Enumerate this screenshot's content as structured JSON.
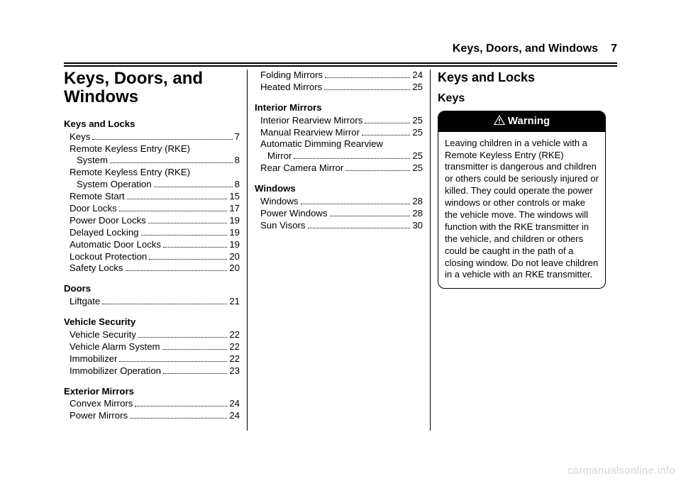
{
  "header": {
    "title": "Keys, Doors, and Windows",
    "page": "7"
  },
  "chapter_title": "Keys, Doors, and Windows",
  "col3": {
    "section": "Keys and Locks",
    "sub": "Keys",
    "warning_label": "Warning",
    "warning_body": "Leaving children in a vehicle with a Remote Keyless Entry (RKE) transmitter is dangerous and children or others could be seriously injured or killed. They could operate the power windows or other controls or make the vehicle move. The windows will function with the RKE transmitter in the vehicle, and children or others could be caught in the path of a closing window. Do not leave children in a vehicle with an RKE transmitter."
  },
  "toc_col1": [
    {
      "group": "Keys and Locks",
      "items": [
        {
          "label": [
            "Keys"
          ],
          "page": "7"
        },
        {
          "label": [
            "Remote Keyless Entry (RKE)",
            "System"
          ],
          "page": "8"
        },
        {
          "label": [
            "Remote Keyless Entry (RKE)",
            "System Operation"
          ],
          "page": "8"
        },
        {
          "label": [
            "Remote Start"
          ],
          "page": "15"
        },
        {
          "label": [
            "Door Locks"
          ],
          "page": "17"
        },
        {
          "label": [
            "Power Door Locks"
          ],
          "page": "19"
        },
        {
          "label": [
            "Delayed Locking"
          ],
          "page": "19"
        },
        {
          "label": [
            "Automatic Door Locks"
          ],
          "page": "19"
        },
        {
          "label": [
            "Lockout Protection"
          ],
          "page": "20"
        },
        {
          "label": [
            "Safety Locks"
          ],
          "page": "20"
        }
      ]
    },
    {
      "group": "Doors",
      "items": [
        {
          "label": [
            "Liftgate"
          ],
          "page": "21"
        }
      ]
    },
    {
      "group": "Vehicle Security",
      "items": [
        {
          "label": [
            "Vehicle Security"
          ],
          "page": "22"
        },
        {
          "label": [
            "Vehicle Alarm System"
          ],
          "page": "22"
        },
        {
          "label": [
            "Immobilizer"
          ],
          "page": "22"
        },
        {
          "label": [
            "Immobilizer Operation"
          ],
          "page": "23"
        }
      ]
    },
    {
      "group": "Exterior Mirrors",
      "items": [
        {
          "label": [
            "Convex Mirrors"
          ],
          "page": "24"
        },
        {
          "label": [
            "Power Mirrors"
          ],
          "page": "24"
        }
      ]
    }
  ],
  "toc_col2": [
    {
      "group": null,
      "items": [
        {
          "label": [
            "Folding Mirrors"
          ],
          "page": "24"
        },
        {
          "label": [
            "Heated Mirrors"
          ],
          "page": "25"
        }
      ]
    },
    {
      "group": "Interior Mirrors",
      "items": [
        {
          "label": [
            "Interior Rearview Mirrors"
          ],
          "page": "25"
        },
        {
          "label": [
            "Manual Rearview Mirror"
          ],
          "page": "25"
        },
        {
          "label": [
            "Automatic Dimming Rearview",
            "Mirror"
          ],
          "page": "25"
        },
        {
          "label": [
            "Rear Camera Mirror"
          ],
          "page": "25"
        }
      ]
    },
    {
      "group": "Windows",
      "items": [
        {
          "label": [
            "Windows"
          ],
          "page": "28"
        },
        {
          "label": [
            "Power Windows"
          ],
          "page": "28"
        },
        {
          "label": [
            "Sun Visors"
          ],
          "page": "30"
        }
      ]
    }
  ],
  "watermark": "carmanualsonline.info"
}
